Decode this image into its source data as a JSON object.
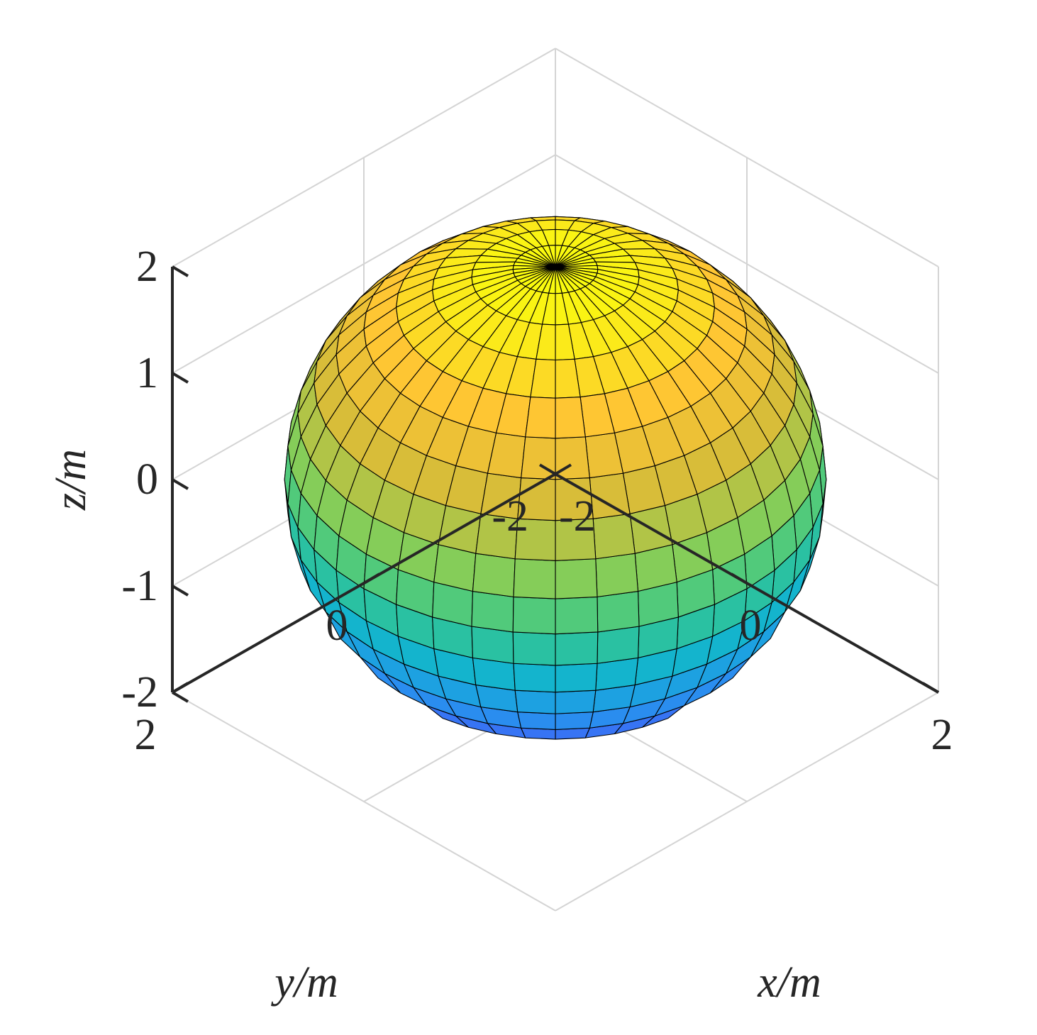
{
  "chart_data": {
    "type": "surface",
    "surface": "sphere",
    "center": [
      0,
      0,
      0
    ],
    "radius": 2,
    "mesh": {
      "longitude_segments": 40,
      "latitude_segments": 20
    },
    "colormap": "parula",
    "color_by": "z",
    "edge_color": "#000000",
    "view": {
      "azimuth": 45,
      "elevation": 35.26
    },
    "xlabel": "x/m",
    "ylabel": "y/m",
    "zlabel": "z/m",
    "xlim": [
      -2,
      2
    ],
    "ylim": [
      -2,
      2
    ],
    "zlim": [
      -2,
      2
    ],
    "xticks": [
      -2,
      0,
      2
    ],
    "yticks": [
      -2,
      0,
      2
    ],
    "zticks": [
      -2,
      -1,
      0,
      1,
      2
    ],
    "x_tick_labels": [
      "-2",
      "0",
      "2"
    ],
    "y_tick_labels": [
      "-2",
      "0",
      "2"
    ],
    "z_tick_labels": [
      "-2",
      "-1",
      "0",
      "1",
      "2"
    ],
    "grid": true,
    "box": false,
    "colors": {
      "axis": "#262626",
      "grid": "#d4d4d4",
      "background": "#ffffff"
    }
  }
}
